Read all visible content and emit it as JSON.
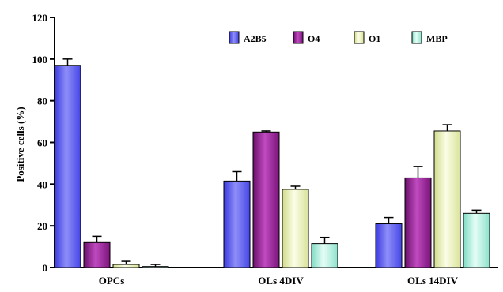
{
  "chart_data": {
    "type": "bar",
    "title": "",
    "xlabel": "",
    "ylabel": "Positive cells (%)",
    "ylim": [
      0,
      120
    ],
    "yticks": [
      "0",
      "20",
      "40",
      "60",
      "80",
      "100",
      "120"
    ],
    "categories": [
      "OPCs",
      "OLs 4DIV",
      "OLs 14DIV"
    ],
    "legend_position": "top-right",
    "grid": false,
    "series": [
      {
        "name": "A2B5",
        "color": "#5b5bf5",
        "values": [
          97,
          41.5,
          21
        ],
        "errors": [
          3,
          4.5,
          3
        ]
      },
      {
        "name": "O4",
        "color": "#9b1f9b",
        "values": [
          12,
          65,
          43
        ],
        "errors": [
          3,
          0.5,
          5.5
        ]
      },
      {
        "name": "O1",
        "color": "#eef5b5",
        "values": [
          1.5,
          37.5,
          65.5
        ],
        "errors": [
          1.5,
          1.5,
          3
        ]
      },
      {
        "name": "MBP",
        "color": "#b5f5e2",
        "values": [
          0.5,
          11.5,
          26
        ],
        "errors": [
          1,
          3,
          1.5
        ]
      }
    ]
  }
}
